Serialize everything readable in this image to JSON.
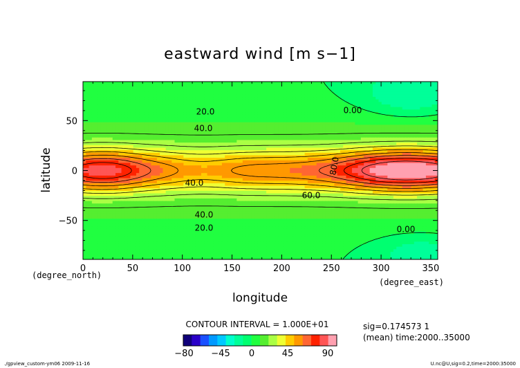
{
  "chart_data": {
    "type": "heatmap",
    "title": "eastward wind [m s−1]",
    "xlabel": "longitude",
    "ylabel": "latitude",
    "x_unit_label": "(degree_east)",
    "y_unit_label": "(degree_north)",
    "xlim": [
      0,
      357
    ],
    "ylim": [
      -89,
      89
    ],
    "x_ticks": [
      0,
      50,
      100,
      150,
      200,
      250,
      300,
      350
    ],
    "y_ticks": [
      -50,
      0,
      50
    ],
    "x_tick_labels": [
      "0",
      "50",
      "100",
      "150",
      "200",
      "250",
      "300",
      "350"
    ],
    "y_tick_labels": [
      "−50",
      "0",
      "50"
    ],
    "levels": [
      -80,
      -70,
      -60,
      -45,
      -35,
      -25,
      -15,
      -5,
      0,
      5,
      15,
      25,
      35,
      45,
      55,
      65,
      75,
      85,
      90
    ],
    "colors": [
      "#10007a",
      "#2a00c8",
      "#1a50ff",
      "#0099ff",
      "#00c8ff",
      "#00ffcc",
      "#00ff99",
      "#00ff70",
      "#20ff40",
      "#55ee30",
      "#aaff44",
      "#eeff33",
      "#ffcc00",
      "#ff9900",
      "#ff6633",
      "#ff2200",
      "#ff5555",
      "#ffa0b0"
    ],
    "colorbar_ticks": [
      "−80",
      "−45",
      "0",
      "45",
      "90"
    ],
    "contour_interval_text": "CONTOUR INTERVAL = 1.000E+01",
    "contour_labels": [
      "20.0",
      "40.0",
      "0.00",
      "40.0",
      "80.0",
      "60.0",
      "40.0",
      "20.0",
      "0.00"
    ],
    "info_lines": [
      "sig=0.174573 1",
      "(mean) time:2000..35000"
    ],
    "footer_left": "./gpview_custom-ym06  2009-11-16",
    "footer_right": "U.nc@U,sig=0.2,time=2000:35000",
    "field_description": "zonal wind, jet near equator with maxima 80-90 at 280-350E, secondary max ~70 at 0-40E, minimum ~40 near 120E; ~0 at high latitudes, negative region near 270-357E north"
  }
}
